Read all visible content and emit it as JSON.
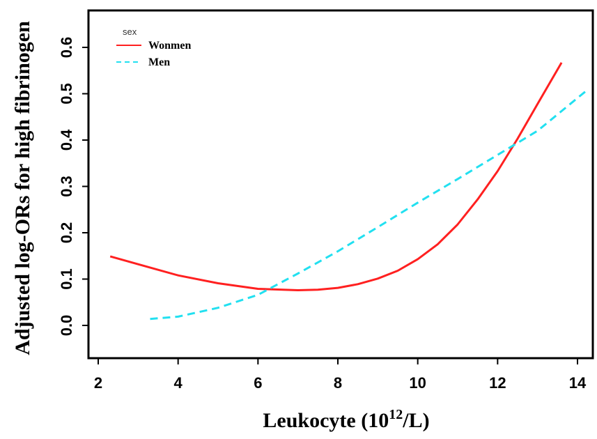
{
  "chart_data": {
    "type": "line",
    "title": "",
    "xlabel_main": "Leukocyte (10",
    "xlabel_sup": "12",
    "xlabel_end": "/L)",
    "ylabel": "Adjusted log-ORs for high fibrinogen",
    "xlim": [
      2,
      14
    ],
    "ylim": [
      -0.06,
      0.68
    ],
    "x_ticks": [
      2,
      4,
      6,
      8,
      10,
      12,
      14
    ],
    "x_tick_labels": [
      "2",
      "4",
      "6",
      "8",
      "10",
      "12",
      "14"
    ],
    "y_ticks": [
      0.0,
      0.1,
      0.2,
      0.3,
      0.4,
      0.5,
      0.6
    ],
    "y_tick_labels": [
      "0.0",
      "0.1",
      "0.2",
      "0.3",
      "0.4",
      "0.5",
      "0.6"
    ],
    "grid": false,
    "legend": {
      "title": "sex",
      "position": "top-left"
    },
    "series": [
      {
        "name": "Wonmen",
        "color": "#ff2020",
        "dash": "solid",
        "points": [
          [
            2.3,
            0.149
          ],
          [
            3.0,
            0.132
          ],
          [
            4.0,
            0.108
          ],
          [
            5.0,
            0.091
          ],
          [
            6.0,
            0.079
          ],
          [
            7.0,
            0.076
          ],
          [
            7.5,
            0.077
          ],
          [
            8.0,
            0.081
          ],
          [
            8.5,
            0.089
          ],
          [
            9.0,
            0.101
          ],
          [
            9.5,
            0.118
          ],
          [
            10.0,
            0.143
          ],
          [
            10.5,
            0.175
          ],
          [
            11.0,
            0.218
          ],
          [
            11.5,
            0.272
          ],
          [
            12.0,
            0.333
          ],
          [
            12.5,
            0.403
          ],
          [
            13.0,
            0.478
          ],
          [
            13.6,
            0.567
          ]
        ]
      },
      {
        "name": "Men",
        "color": "#22e0f0",
        "dash": "dashed",
        "points": [
          [
            3.3,
            0.014
          ],
          [
            4.0,
            0.019
          ],
          [
            5.0,
            0.038
          ],
          [
            6.0,
            0.066
          ],
          [
            7.0,
            0.112
          ],
          [
            8.0,
            0.16
          ],
          [
            9.0,
            0.212
          ],
          [
            10.0,
            0.265
          ],
          [
            11.0,
            0.316
          ],
          [
            12.0,
            0.368
          ],
          [
            13.0,
            0.42
          ],
          [
            14.2,
            0.505
          ]
        ]
      }
    ]
  }
}
